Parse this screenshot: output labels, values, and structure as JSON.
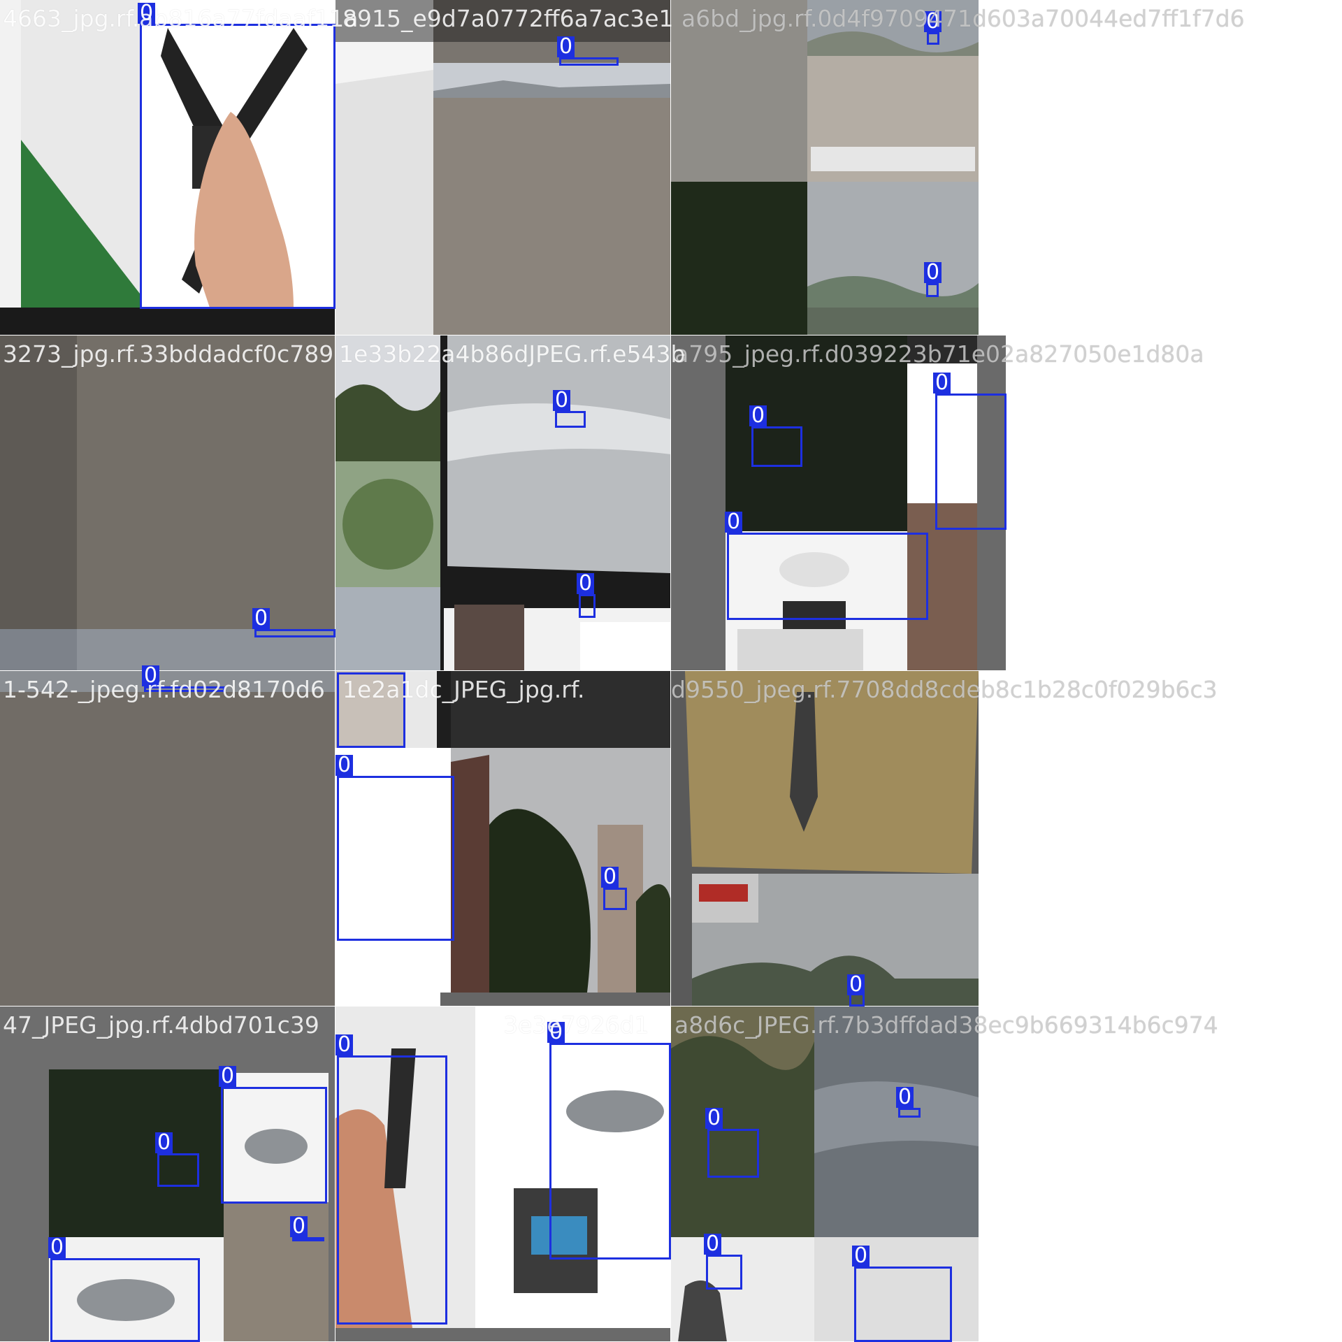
{
  "grid": {
    "columns": 3,
    "rows": 4,
    "box_color": "#1d2fe0",
    "box_class_label": "0"
  },
  "filenames": [
    "4663_jpg.rf.ab816a77fdaaf11a8915_e9d7a0772ff6a7ac3e1a6bd_jpg.rf.0d4f9709471d603a70044ed7ff1f7d6",
    "3273_jpg.rf.33bddadcf0c789...1e33b22a4b86dJPEG.rf.e543ba795_jpeg.rf.d039223b71e02a827050e1d80a",
    "1-542-_jpeg.rf.fd02d8170d6...1e2a1dc_JPEG_jpg.rf.d9550_jpeg.rf.7708dd8cdeb8c1b28c0f029b6c3",
    "47_JPEG_jpg.rf.4dbd701c39...e3e7926d1a8d6c_JPEG.rf.7b3dffdad38ec9b669314b6c974"
  ],
  "row_titles": [
    [
      "4663_jpg.rf.ab816a77fdaaf11a",
      "8915_e9d7a0772ff6a7ac3e1",
      "a6bd_jpg.rf.0d4f9709471d603a70044ed7ff1f7d6"
    ],
    [
      "3273_jpg.rf.33bddadcf0c789",
      "1e33b22a4b86dJPEG.rf.e543b",
      "a795_jpeg.rf.d039223b71e02a827050e1d80a"
    ],
    [
      "1-542-_jpeg.rf.fd02d8170d6",
      "1e2a1dc_JPEG_jpg.rf.",
      "d9550_jpeg.rf.7708dd8cdeb8c1b28c0f029b6c3"
    ],
    [
      "47_JPEG_jpg.rf.4dbd701c39",
      "3e3e7926d1",
      "a8d6c_JPEG.rf.7b3dffdad38ec9b669314b6c974"
    ]
  ],
  "tiles": [
    {
      "id": "r1c1",
      "scene": "hand holding quadcopter frame",
      "boxes": 1
    },
    {
      "id": "r1c2",
      "scene": "gravel field with distant mountains",
      "boxes": 1
    },
    {
      "id": "r1c3",
      "scene": "bridge and trees with drone",
      "boxes": 2
    },
    {
      "id": "r2c1",
      "scene": "dirt ground",
      "boxes": 2
    },
    {
      "id": "r2c2",
      "scene": "cloudy sky with buildings",
      "boxes": 3
    },
    {
      "id": "r2c3",
      "scene": "drone product collage",
      "boxes": 3
    },
    {
      "id": "r3c1",
      "scene": "gravel field",
      "boxes": 0
    },
    {
      "id": "r3c2",
      "scene": "drone and apartment buildings",
      "boxes": 3
    },
    {
      "id": "r3c3",
      "scene": "man in grass field, bridge",
      "boxes": 1
    },
    {
      "id": "r4c1",
      "scene": "white drones on dark background",
      "boxes": 4
    },
    {
      "id": "r4c2",
      "scene": "drone and remote controller",
      "boxes": 2
    },
    {
      "id": "r4c3",
      "scene": "trees and sky with drones",
      "boxes": 4
    }
  ]
}
